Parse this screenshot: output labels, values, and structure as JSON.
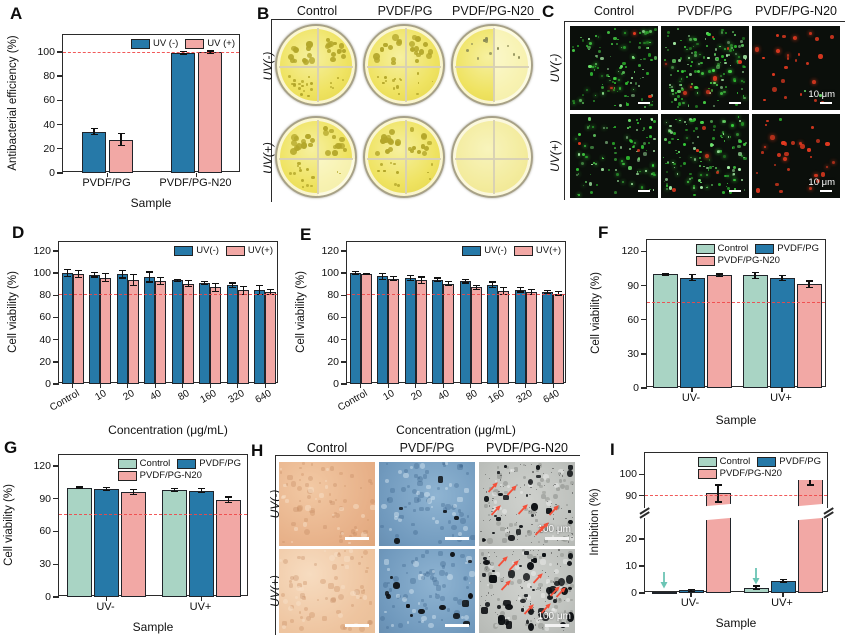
{
  "panel_letters": {
    "A": "A",
    "B": "B",
    "C": "C",
    "D": "D",
    "E": "E",
    "F": "F",
    "G": "G",
    "H": "H",
    "I": "I"
  },
  "colors": {
    "uv_minus": "#2679a8",
    "uv_plus": "#f2a8a5",
    "control": "#a9d4c4",
    "pvdf_pg": "#2679a8",
    "pvdf_pg_n20": "#f2a8a5",
    "ref_dashed": "#f04848",
    "annotation_arrow": "#6cc5b5",
    "colony": "#b3a62a",
    "fluor_green": "#3cd23c",
    "fluor_red": "#e63a20"
  },
  "chart_data": [
    {
      "panel": "A",
      "type": "bar",
      "ylabel": "Antibacterial efficiency (%)",
      "xlabel": "Sample",
      "categories": [
        "PVDF/PG",
        "PVDF/PG-N20"
      ],
      "yticks": [
        0,
        20,
        40,
        60,
        80,
        100
      ],
      "ylim": [
        0,
        114
      ],
      "ref_line": 99,
      "legend_rows": [
        [
          0,
          1
        ]
      ],
      "series": [
        {
          "name": "UV (-)",
          "color_key": "uv_minus",
          "values": [
            34,
            99.3
          ],
          "errors": [
            2.5,
            1
          ]
        },
        {
          "name": "UV (+)",
          "color_key": "uv_plus",
          "values": [
            27.5,
            100
          ],
          "errors": [
            5,
            0.8
          ]
        }
      ]
    },
    {
      "panel": "D",
      "type": "bar",
      "ylabel": "Cell viability (%)",
      "xlabel": "Concentration (μg/mL)",
      "categories": [
        "Control",
        "10",
        "20",
        "40",
        "80",
        "160",
        "320",
        "640"
      ],
      "yticks": [
        0,
        20,
        40,
        60,
        80,
        100,
        120
      ],
      "ylim": [
        0,
        128
      ],
      "ref_line": 80,
      "legend_rows": [
        [
          0,
          1
        ]
      ],
      "series": [
        {
          "name": "UV(-)",
          "color_key": "uv_minus",
          "values": [
            100,
            98.5,
            99,
            96.5,
            93.5,
            91,
            89,
            85
          ],
          "errors": [
            3,
            2,
            3.5,
            4.5,
            1,
            1.5,
            2,
            4
          ]
        },
        {
          "name": "UV(+)",
          "color_key": "uv_plus",
          "values": [
            99,
            96,
            94,
            93,
            90.5,
            87,
            84.5,
            83
          ],
          "errors": [
            3,
            3.5,
            5,
            3,
            2.5,
            3.5,
            3.5,
            2
          ]
        }
      ]
    },
    {
      "panel": "E",
      "type": "bar",
      "ylabel": "Cell viability (%)",
      "xlabel": "Concentration (μg/mL)",
      "categories": [
        "Control",
        "10",
        "20",
        "40",
        "80",
        "160",
        "320",
        "640"
      ],
      "yticks": [
        0,
        20,
        40,
        60,
        80,
        100,
        120
      ],
      "ylim": [
        0,
        128
      ],
      "ref_line": 80,
      "legend_rows": [
        [
          0,
          1
        ]
      ],
      "series": [
        {
          "name": "UV(-)",
          "color_key": "uv_minus",
          "values": [
            100,
            97,
            95.5,
            94,
            92.5,
            89.5,
            85,
            83
          ],
          "errors": [
            1.5,
            2.5,
            2,
            1.5,
            1.5,
            2.5,
            2,
            1.5
          ]
        },
        {
          "name": "UV(+)",
          "color_key": "uv_plus",
          "values": [
            99,
            95,
            93.5,
            90.5,
            87,
            84,
            83,
            81.5
          ],
          "errors": [
            0.5,
            2,
            3,
            2,
            1.5,
            3,
            2.5,
            2
          ]
        }
      ]
    },
    {
      "panel": "F",
      "type": "bar",
      "ylabel": "Cell viability (%)",
      "xlabel": "Sample",
      "categories": [
        "UV-",
        "UV+"
      ],
      "yticks": [
        0,
        30,
        60,
        90,
        120
      ],
      "ylim": [
        0,
        130
      ],
      "ref_line": 75,
      "legend_rows": [
        [
          0,
          1
        ],
        [
          2
        ]
      ],
      "series": [
        {
          "name": "Control",
          "color_key": "control",
          "values": [
            100,
            99
          ],
          "errors": [
            0.7,
            2.5
          ]
        },
        {
          "name": "PVDF/PG",
          "color_key": "pvdf_pg",
          "values": [
            97,
            96.5
          ],
          "errors": [
            2.5,
            2
          ]
        },
        {
          "name": "PVDF/PG-N20",
          "color_key": "pvdf_pg_n20",
          "values": [
            99,
            91
          ],
          "errors": [
            1.2,
            3
          ]
        }
      ]
    },
    {
      "panel": "G",
      "type": "bar",
      "ylabel": "Cell viability (%)",
      "xlabel": "Sample",
      "categories": [
        "UV-",
        "UV+"
      ],
      "yticks": [
        0,
        30,
        60,
        90,
        120
      ],
      "ylim": [
        0,
        130
      ],
      "ref_line": 75,
      "legend_rows": [
        [
          0,
          1
        ],
        [
          2
        ]
      ],
      "series": [
        {
          "name": "Control",
          "color_key": "control",
          "values": [
            100,
            98
          ],
          "errors": [
            0.7,
            1.5
          ]
        },
        {
          "name": "PVDF/PG",
          "color_key": "pvdf_pg",
          "values": [
            99,
            97.5
          ],
          "errors": [
            1.5,
            2
          ]
        },
        {
          "name": "PVDF/PG-N20",
          "color_key": "pvdf_pg_n20",
          "values": [
            96,
            89
          ],
          "errors": [
            2.5,
            2.5
          ]
        }
      ]
    },
    {
      "panel": "I",
      "type": "bar",
      "ylabel": "Inhibition (%)",
      "xlabel": "Sample",
      "categories": [
        "UV-",
        "UV+"
      ],
      "yticks": [
        0,
        10,
        20,
        90,
        100
      ],
      "ref_line": 90,
      "axis_break": {
        "lower_range": [
          0,
          27
        ],
        "upper_range": [
          85,
          110
        ],
        "lower_frac": [
          0,
          0.52
        ],
        "upper_frac": [
          0.62,
          1
        ]
      },
      "legend_rows": [
        [
          0,
          1
        ],
        [
          2
        ]
      ],
      "series": [
        {
          "name": "Control",
          "color_key": "control",
          "values": [
            0.4,
            2
          ],
          "errors": [
            0,
            0.6
          ]
        },
        {
          "name": "PVDF/PG",
          "color_key": "pvdf_pg",
          "values": [
            1,
            4.5
          ],
          "errors": [
            0.4,
            0.4
          ]
        },
        {
          "name": "PVDF/PG-N20",
          "color_key": "pvdf_pg_n20",
          "values": [
            91,
            99
          ],
          "errors": [
            4,
            4
          ]
        }
      ],
      "annotations": [
        {
          "type": "down-arrow",
          "series": "Control",
          "category": "UV-"
        },
        {
          "type": "down-arrow",
          "series": "Control",
          "category": "UV+"
        }
      ]
    }
  ],
  "image_panels": {
    "B": {
      "columns": [
        "Control",
        "PVDF/PG",
        "PVDF/PG-N20"
      ],
      "rows": [
        "UV(-)",
        "UV(+)"
      ],
      "dishes": [
        {
          "col": "Control",
          "row": "UV(-)",
          "colonies": [
            11,
            13,
            16,
            5
          ],
          "pale_quadrants": [],
          "tone": "normal",
          "colony_scale": 1
        },
        {
          "col": "PVDF/PG",
          "row": "UV(-)",
          "colonies": [
            10,
            12,
            12,
            4
          ],
          "pale_quadrants": [],
          "tone": "normal",
          "colony_scale": 1
        },
        {
          "col": "PVDF/PG-N20",
          "row": "UV(-)",
          "colonies": [
            7,
            4,
            0,
            0
          ],
          "pale_quadrants": [
            1,
            3
          ],
          "tone": "normal",
          "colony_scale": 0.5
        },
        {
          "col": "Control",
          "row": "UV(+)",
          "colonies": [
            12,
            12,
            12,
            2
          ],
          "pale_quadrants": [
            3
          ],
          "tone": "normal",
          "colony_scale": 1
        },
        {
          "col": "PVDF/PG",
          "row": "UV(+)",
          "colonies": [
            12,
            11,
            9,
            3
          ],
          "pale_quadrants": [],
          "tone": "normal",
          "colony_scale": 1
        },
        {
          "col": "PVDF/PG-N20",
          "row": "UV(+)",
          "colonies": [
            0,
            0,
            0,
            0
          ],
          "pale_quadrants": [],
          "tone": "light",
          "colony_scale": 1
        }
      ]
    },
    "C": {
      "columns": [
        "Control",
        "PVDF/PG",
        "PVDF/PG-N20"
      ],
      "rows": [
        "UV(-)",
        "UV(+)"
      ],
      "scale_bar_label": "10 μm",
      "cells": [
        {
          "green_dots": 115,
          "red_dots": 3,
          "show_scale_label": false
        },
        {
          "green_dots": 145,
          "red_dots": 8,
          "show_scale_label": false
        },
        {
          "green_dots": 2,
          "red_dots": 26,
          "show_scale_label": true
        },
        {
          "green_dots": 95,
          "red_dots": 2,
          "show_scale_label": false
        },
        {
          "green_dots": 135,
          "red_dots": 5,
          "show_scale_label": false
        },
        {
          "green_dots": 1,
          "red_dots": 30,
          "show_scale_label": true
        }
      ]
    },
    "H": {
      "columns": [
        "Control",
        "PVDF/PG",
        "PVDF/PG-N20"
      ],
      "rows": [
        "UV(-)",
        "UV(+)"
      ],
      "scale_bar_label": "100 μm",
      "cells": [
        {
          "style": "tan",
          "tone": "normal",
          "black_specks": 0,
          "red_arrows": 0,
          "show_scale_label": false
        },
        {
          "style": "blue",
          "tone": "normal",
          "black_specks": 5,
          "red_arrows": 0,
          "show_scale_label": false
        },
        {
          "style": "gray",
          "tone": "normal",
          "black_specks": 24,
          "red_arrows": 7,
          "show_scale_label": true
        },
        {
          "style": "tan",
          "tone": "light",
          "black_specks": 0,
          "red_arrows": 0,
          "show_scale_label": false
        },
        {
          "style": "blue",
          "tone": "normal",
          "black_specks": 14,
          "red_arrows": 0,
          "show_scale_label": false
        },
        {
          "style": "gray",
          "tone": "normal",
          "black_specks": 46,
          "red_arrows": 8,
          "show_scale_label": true
        }
      ]
    }
  }
}
